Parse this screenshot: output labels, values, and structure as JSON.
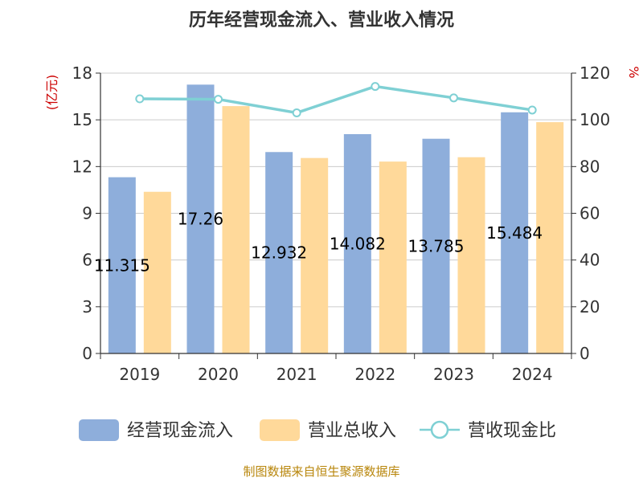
{
  "chart_data": {
    "type": "bar",
    "title": "历年经营现金流入、营业收入情况",
    "categories": [
      "2019",
      "2020",
      "2021",
      "2022",
      "2023",
      "2024"
    ],
    "y_left": {
      "unit": "(亿元)",
      "ylim": [
        0,
        18
      ],
      "ticks": [
        "0",
        "3",
        "6",
        "9",
        "12",
        "15",
        "18"
      ]
    },
    "y_right": {
      "unit": "%",
      "ylim": [
        0,
        120
      ],
      "ticks": [
        "0",
        "20",
        "40",
        "60",
        "80",
        "100",
        "120"
      ]
    },
    "series": [
      {
        "name": "经营现金流入",
        "type": "bar",
        "axis": "left",
        "color": "#8eaedb",
        "values": [
          11.315,
          17.26,
          12.932,
          14.082,
          13.785,
          15.484
        ],
        "labels": [
          "11.315",
          "17.26",
          "12.932",
          "14.082",
          "13.785",
          "15.484"
        ]
      },
      {
        "name": "营业总收入",
        "type": "bar",
        "axis": "left",
        "color": "#ffd99a",
        "values": [
          10.38,
          15.88,
          12.55,
          12.32,
          12.6,
          14.85
        ]
      },
      {
        "name": "营收现金比",
        "type": "line",
        "axis": "right",
        "color": "#7fd0d4",
        "values": [
          109,
          108.8,
          103,
          114.3,
          109.4,
          104.2
        ]
      }
    ],
    "grid": true,
    "legend_position": "bottom"
  },
  "footer": {
    "source": "制图数据来自恒生聚源数据库"
  }
}
